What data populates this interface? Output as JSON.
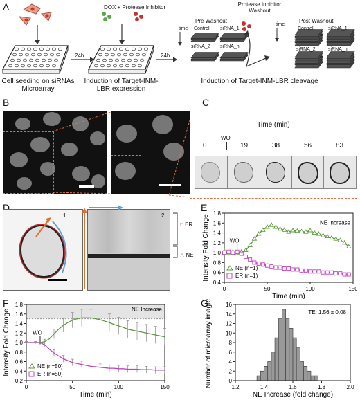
{
  "panels": {
    "A": {
      "label": "A",
      "steps": {
        "doxInhibitor": "DOX + Protease Inhibitor",
        "washout": "Protease Inhibitor Washout",
        "t1": "24h",
        "t2": "24h",
        "preWashout": "Pre Washout",
        "postWashout": "Post Washout",
        "control": "Control",
        "sirna1": "siRNA_1",
        "sirna2": "siRNA_2",
        "sirnaN": "siRNA_n",
        "time": "time"
      },
      "captions": {
        "seeding": "Cell seeding on siRNAs Microarray",
        "induction": "Induction of Target-INM-LBR expression",
        "cleavage": "Induction of Target-INM-LBR cleavage"
      }
    },
    "B": {
      "label": "B"
    },
    "C": {
      "label": "C",
      "title": "Time (min)",
      "wo": "WO",
      "times": [
        "0",
        "19",
        "38",
        "56",
        "83"
      ]
    },
    "D": {
      "label": "D",
      "sub1": "1",
      "sub2": "2",
      "er": "ER",
      "ne": "NE"
    },
    "E": {
      "label": "E"
    },
    "F": {
      "label": "F"
    },
    "G": {
      "label": "G"
    }
  },
  "chart_data": [
    {
      "panel": "E",
      "type": "line",
      "ylabel": "Intensity Fold Change",
      "xlabel": "Time (min)",
      "xlim": [
        0,
        150
      ],
      "ylim": [
        0.4,
        1.8
      ],
      "xticks": [
        "0",
        "50",
        "100",
        "150"
      ],
      "yticks": [
        "0.4",
        "0.6",
        "0.8",
        "1.0",
        "1.2",
        "1.4",
        "1.6",
        "1.8"
      ],
      "annotation": "NE Increase",
      "wo_label": "WO",
      "threshold": 1.5,
      "legend": [
        "NE (n=1)",
        "ER (n=1)"
      ],
      "series": [
        {
          "name": "NE (n=1)",
          "color": "#5a9a3a",
          "marker": "triangle",
          "x": [
            0,
            5,
            10,
            15,
            20,
            25,
            30,
            35,
            40,
            45,
            50,
            55,
            60,
            65,
            70,
            75,
            80,
            85,
            90,
            95,
            100,
            105,
            110,
            115,
            120,
            125,
            130,
            135,
            140,
            145
          ],
          "y": [
            1.03,
            1.0,
            1.02,
            1.0,
            1.02,
            1.05,
            1.15,
            1.28,
            1.38,
            1.46,
            1.52,
            1.56,
            1.52,
            1.48,
            1.46,
            1.42,
            1.45,
            1.44,
            1.43,
            1.42,
            1.45,
            1.4,
            1.38,
            1.35,
            1.33,
            1.3,
            1.28,
            1.25,
            1.2,
            1.12
          ]
        },
        {
          "name": "ER (n=1)",
          "color": "#c040c0",
          "marker": "square",
          "x": [
            0,
            5,
            10,
            15,
            20,
            25,
            30,
            35,
            40,
            45,
            50,
            55,
            60,
            65,
            70,
            75,
            80,
            85,
            90,
            95,
            100,
            105,
            110,
            115,
            120,
            125,
            130,
            135,
            140,
            145
          ],
          "y": [
            1.0,
            1.02,
            1.0,
            1.02,
            0.98,
            0.92,
            0.86,
            0.8,
            0.78,
            0.76,
            0.74,
            0.72,
            0.7,
            0.7,
            0.68,
            0.68,
            0.66,
            0.66,
            0.64,
            0.64,
            0.62,
            0.62,
            0.62,
            0.6,
            0.6,
            0.6,
            0.58,
            0.58,
            0.56,
            0.56
          ]
        }
      ]
    },
    {
      "panel": "F",
      "type": "line",
      "ylabel": "Intensity Fold Change",
      "xlabel": "Time (min)",
      "xlim": [
        0,
        150
      ],
      "ylim": [
        0.2,
        1.8
      ],
      "xticks": [
        "0",
        "50",
        "100",
        "150"
      ],
      "yticks": [
        "0.2",
        "0.4",
        "0.6",
        "0.8",
        "1.0",
        "1.2",
        "1.4",
        "1.6",
        "1.8"
      ],
      "annotation": "NE Increase",
      "wo_label": "WO",
      "shaded_band": [
        1.5,
        1.8
      ],
      "legend": [
        "NE (n=50)",
        "ER (n=50)"
      ],
      "series": [
        {
          "name": "NE (n=50)",
          "color": "#5a9a3a",
          "x": [
            0,
            5,
            10,
            15,
            20,
            25,
            30,
            35,
            40,
            45,
            50,
            55,
            60,
            65,
            70,
            75,
            80,
            85,
            90,
            95,
            100,
            105,
            110,
            115,
            120,
            125,
            130,
            135,
            140,
            145,
            150
          ],
          "y": [
            1.0,
            1.0,
            1.0,
            1.0,
            1.02,
            1.08,
            1.18,
            1.28,
            1.36,
            1.42,
            1.47,
            1.5,
            1.52,
            1.52,
            1.52,
            1.5,
            1.48,
            1.45,
            1.42,
            1.38,
            1.35,
            1.32,
            1.28,
            1.26,
            1.24,
            1.22,
            1.2,
            1.18,
            1.16,
            1.14,
            1.12
          ],
          "error": [
            0.02,
            0.02,
            0.02,
            0.03,
            0.05,
            0.08,
            0.1,
            0.12,
            0.14,
            0.15,
            0.16,
            0.17,
            0.18,
            0.18,
            0.18,
            0.18,
            0.18,
            0.18,
            0.18,
            0.18,
            0.18,
            0.18,
            0.18,
            0.18,
            0.18,
            0.18,
            0.18,
            0.18,
            0.18,
            0.18,
            0.18
          ]
        },
        {
          "name": "ER (n=50)",
          "color": "#c040c0",
          "x": [
            0,
            5,
            10,
            15,
            20,
            25,
            30,
            35,
            40,
            45,
            50,
            55,
            60,
            65,
            70,
            75,
            80,
            85,
            90,
            95,
            100,
            105,
            110,
            115,
            120,
            125,
            130,
            135,
            140,
            145,
            150
          ],
          "y": [
            1.0,
            1.0,
            1.0,
            1.0,
            0.95,
            0.86,
            0.78,
            0.72,
            0.66,
            0.62,
            0.58,
            0.56,
            0.54,
            0.52,
            0.5,
            0.49,
            0.48,
            0.47,
            0.46,
            0.46,
            0.45,
            0.45,
            0.44,
            0.44,
            0.44,
            0.43,
            0.43,
            0.43,
            0.42,
            0.42,
            0.42
          ],
          "error": [
            0.02,
            0.02,
            0.02,
            0.02,
            0.04,
            0.06,
            0.07,
            0.07,
            0.07,
            0.07,
            0.07,
            0.07,
            0.07,
            0.07,
            0.07,
            0.07,
            0.07,
            0.07,
            0.07,
            0.07,
            0.07,
            0.07,
            0.07,
            0.07,
            0.07,
            0.07,
            0.07,
            0.07,
            0.07,
            0.07,
            0.07
          ]
        }
      ]
    },
    {
      "panel": "G",
      "type": "bar",
      "ylabel": "Number of microarray imaged",
      "xlabel": "NE Increase (fold change)",
      "xlim": [
        1.2,
        2.0
      ],
      "ylim": [
        0,
        16
      ],
      "xticks": [
        "1.2",
        "1.4",
        "1.6",
        "1.8",
        "2.0"
      ],
      "yticks": [
        "0",
        "2",
        "4",
        "6",
        "8",
        "10",
        "12",
        "14",
        "16"
      ],
      "annotation": "TE: 1.56 ± 0.08",
      "bin_width": 0.025,
      "bin_starts": [
        1.35,
        1.375,
        1.4,
        1.425,
        1.45,
        1.475,
        1.5,
        1.525,
        1.55,
        1.575,
        1.6,
        1.625,
        1.65,
        1.675,
        1.7,
        1.725,
        1.75
      ],
      "counts": [
        1,
        2,
        3,
        4,
        6,
        9,
        13,
        15,
        13,
        11,
        9,
        7,
        4,
        3,
        2,
        1,
        1
      ]
    }
  ]
}
